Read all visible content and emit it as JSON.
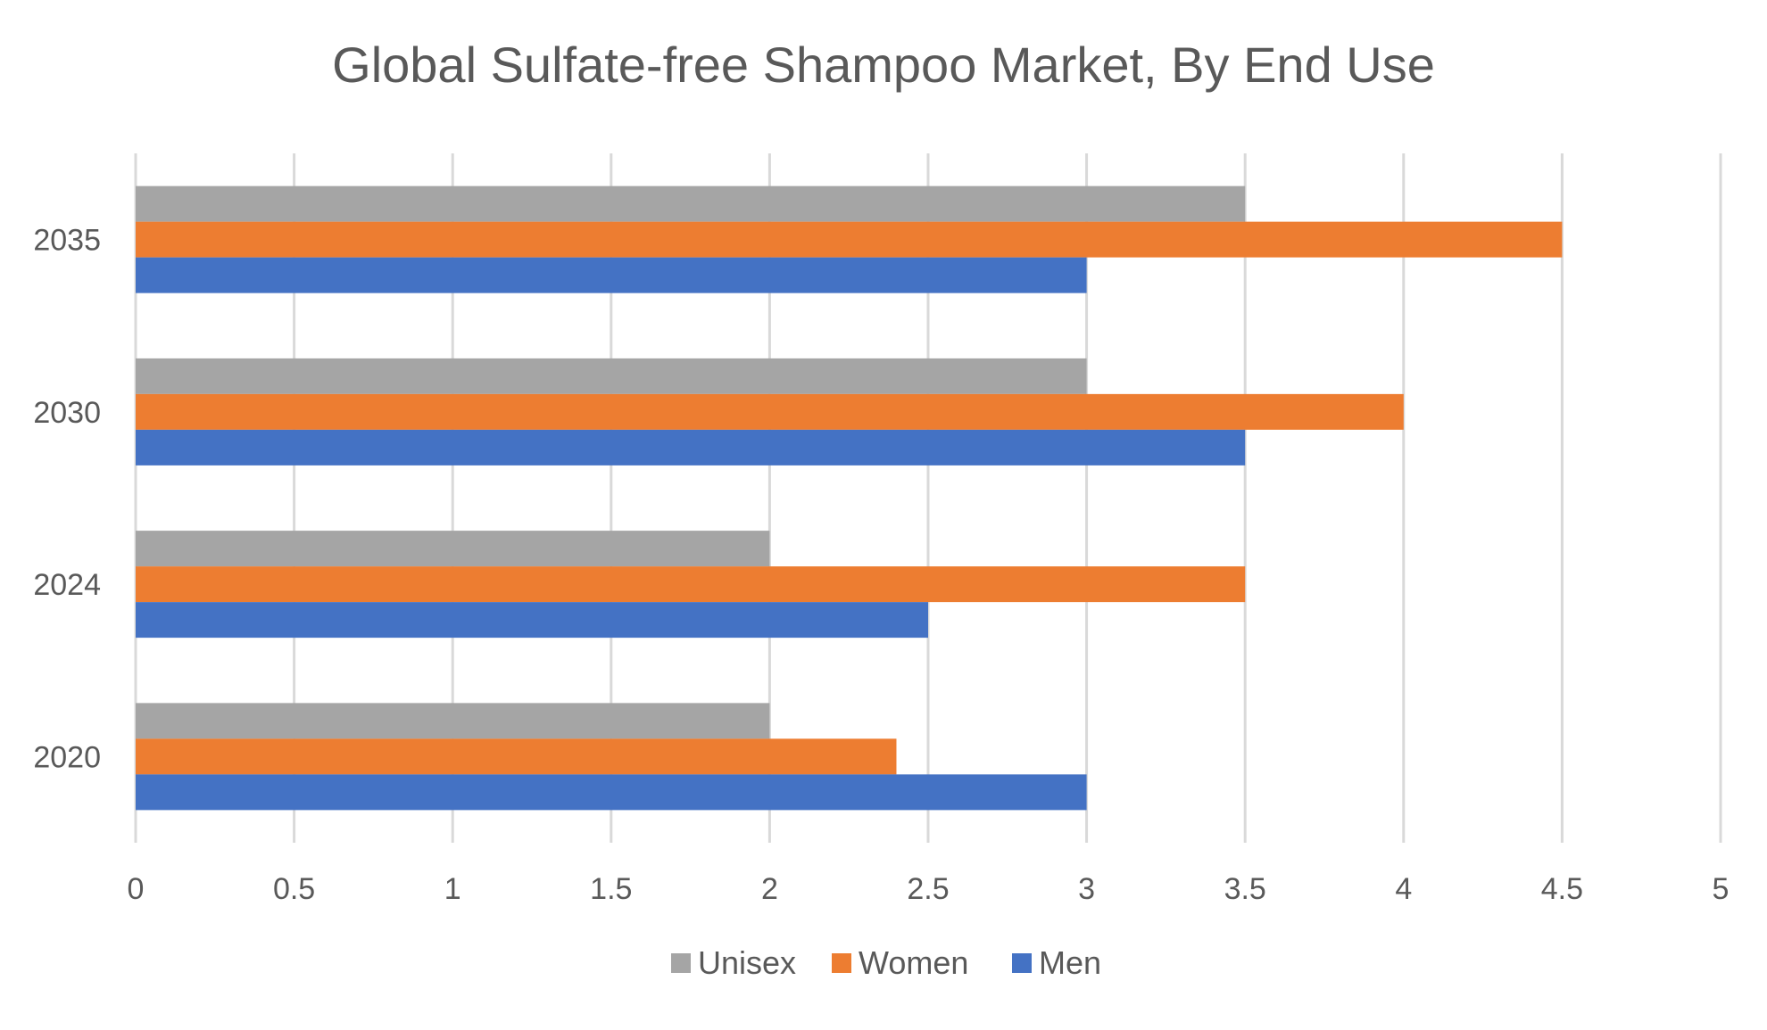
{
  "chart_data": {
    "type": "bar",
    "orientation": "horizontal",
    "title": "Global Sulfate-free Shampoo Market, By End Use",
    "xlabel": "",
    "ylabel": "",
    "categories": [
      "2020",
      "2024",
      "2030",
      "2035"
    ],
    "series": [
      {
        "name": "Unisex",
        "color": "#a5a5a5",
        "values": [
          2,
          2,
          3,
          3.5
        ]
      },
      {
        "name": "Women",
        "color": "#ed7d31",
        "values": [
          2.4,
          3.5,
          4,
          4.5
        ]
      },
      {
        "name": "Men",
        "color": "#4472c4",
        "values": [
          3,
          2.5,
          3.5,
          3
        ]
      }
    ],
    "xlim": [
      0,
      5
    ],
    "x_ticks": [
      "0",
      "0.5",
      "1",
      "1.5",
      "2",
      "2.5",
      "3",
      "3.5",
      "4",
      "4.5",
      "5"
    ],
    "grid": "vertical",
    "legend_position": "bottom"
  }
}
